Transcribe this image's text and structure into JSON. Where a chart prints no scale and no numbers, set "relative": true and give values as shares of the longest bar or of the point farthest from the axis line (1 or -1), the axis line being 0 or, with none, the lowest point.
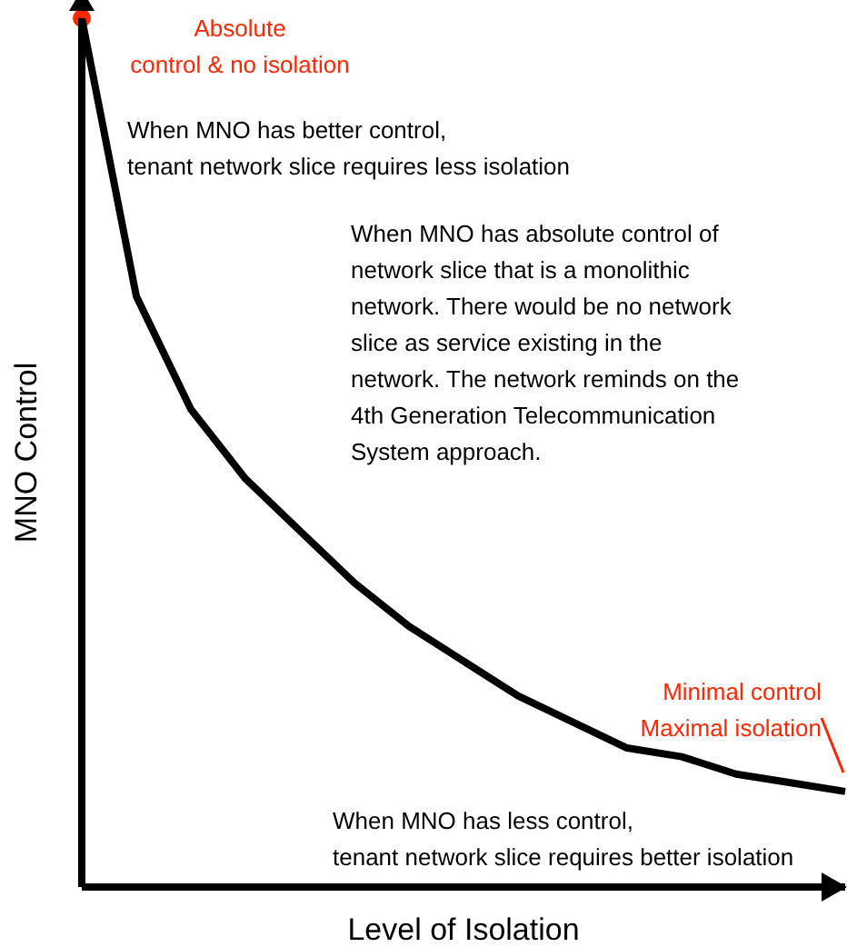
{
  "chart_data": {
    "type": "line",
    "relative": true,
    "xlabel": "Level of Isolation",
    "ylabel": "MNO Control",
    "categories": [
      null,
      null,
      null,
      null,
      null,
      null,
      null,
      null,
      null,
      null,
      null,
      null,
      null,
      null,
      null
    ],
    "series": [
      {
        "color": "#000000",
        "values": [
          1,
          0.68,
          0.55,
          0.47,
          0.41,
          0.35,
          0.3,
          0.26,
          0.22,
          0.19,
          0.16,
          0.15,
          0.13,
          0.12,
          0.11
        ]
      }
    ],
    "annotations": [
      "Absolute\ncontrol & no isolation",
      "When MNO has better control,\ntenant network slice requires less isolation",
      "When MNO has absolute control of\nnetwork slice that is a monolithic\nnetwork. There would be no network\nslice as service existing in the\nnetwork. The network reminds on the\n4th Generation Telecommunication\nSystem approach.",
      "Minimal control\nMaximal isolation",
      "When MNO has less control,\ntenant network slice requires better isolation"
    ],
    "grid": false,
    "legend": false
  }
}
